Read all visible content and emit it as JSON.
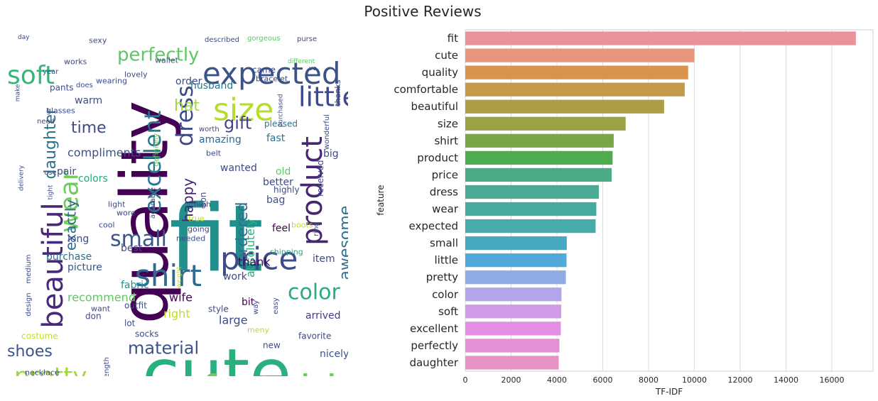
{
  "suptitle": "Positive Reviews",
  "wordcloud": {
    "words": [
      {
        "text": "fit",
        "size": 130,
        "color": "#21908d",
        "rotate": 0
      },
      {
        "text": "quality",
        "size": 92,
        "color": "#440154",
        "rotate": -90
      },
      {
        "text": "cute",
        "size": 96,
        "color": "#2ab07f",
        "rotate": 0
      },
      {
        "text": "comfortable",
        "size": 58,
        "color": "#6ccd5a",
        "rotate": 0
      },
      {
        "text": "expected",
        "size": 42,
        "color": "#3b528b",
        "rotate": 0
      },
      {
        "text": "size",
        "size": 44,
        "color": "#b5de2b",
        "rotate": 0
      },
      {
        "text": "price",
        "size": 44,
        "color": "#3e4a89",
        "rotate": 0
      },
      {
        "text": "shirt",
        "size": 42,
        "color": "#31688e",
        "rotate": 0
      },
      {
        "text": "beautiful",
        "size": 40,
        "color": "#482878",
        "rotate": -90
      },
      {
        "text": "product",
        "size": 40,
        "color": "#482475",
        "rotate": -90
      },
      {
        "text": "dress",
        "size": 32,
        "color": "#3e4a89",
        "rotate": -90
      },
      {
        "text": "little",
        "size": 38,
        "color": "#3e4a89",
        "rotate": 0
      },
      {
        "text": "soft",
        "size": 36,
        "color": "#35b779",
        "rotate": 0
      },
      {
        "text": "wear",
        "size": 36,
        "color": "#6ccd5a",
        "rotate": -90
      },
      {
        "text": "pretty",
        "size": 34,
        "color": "#a0da39",
        "rotate": 0
      },
      {
        "text": "excellent",
        "size": 32,
        "color": "#2a788e",
        "rotate": -90
      },
      {
        "text": "small",
        "size": 30,
        "color": "#39568c",
        "rotate": 0
      },
      {
        "text": "color",
        "size": 30,
        "color": "#27ad81",
        "rotate": 0
      },
      {
        "text": "perfectly",
        "size": 26,
        "color": "#5ec962",
        "rotate": 0
      },
      {
        "text": "daughter",
        "size": 22,
        "color": "#2c728e",
        "rotate": -90
      },
      {
        "text": "material",
        "size": 24,
        "color": "#3b528b",
        "rotate": 0
      },
      {
        "text": "ordered",
        "size": 22,
        "color": "#2c728e",
        "rotate": -90
      },
      {
        "text": "awesome",
        "size": 22,
        "color": "#2c728e",
        "rotate": -90
      },
      {
        "text": "shoes",
        "size": 22,
        "color": "#3b528b",
        "rotate": 0
      },
      {
        "text": "time",
        "size": 22,
        "color": "#3e4a89",
        "rotate": 0
      },
      {
        "text": "gift",
        "size": 24,
        "color": "#414487",
        "rotate": 0
      },
      {
        "text": "hat",
        "size": 22,
        "color": "#a0da39",
        "rotate": 0
      },
      {
        "text": "happy",
        "size": 20,
        "color": "#482475",
        "rotate": -90
      },
      {
        "text": "exactly",
        "size": 20,
        "color": "#31688e",
        "rotate": -90
      },
      {
        "text": "compliments",
        "size": 16,
        "color": "#3b528b",
        "rotate": 0
      },
      {
        "text": "recommend",
        "size": 16,
        "color": "#5ec962",
        "rotate": 0
      },
      {
        "text": "absolutely",
        "size": 16,
        "color": "#2ab07f",
        "rotate": -90
      },
      {
        "text": "amazing",
        "size": 14,
        "color": "#31688e",
        "rotate": 0
      },
      {
        "text": "colors",
        "size": 14,
        "color": "#22a884",
        "rotate": 0
      },
      {
        "text": "purchase",
        "size": 14,
        "color": "#2c728e",
        "rotate": 0
      },
      {
        "text": "picture",
        "size": 14,
        "color": "#3b528b",
        "rotate": 0
      },
      {
        "text": "fabric",
        "size": 14,
        "color": "#21918c",
        "rotate": 0
      },
      {
        "text": "wife",
        "size": 16,
        "color": "#440154",
        "rotate": 0
      },
      {
        "text": "right",
        "size": 16,
        "color": "#bddf26",
        "rotate": 0
      },
      {
        "text": "large",
        "size": 16,
        "color": "#3e4a89",
        "rotate": 0
      },
      {
        "text": "thank",
        "size": 16,
        "color": "#440154",
        "rotate": 0
      },
      {
        "text": "arrived",
        "size": 14,
        "color": "#443983",
        "rotate": 0
      },
      {
        "text": "big",
        "size": 14,
        "color": "#3e4a89",
        "rotate": 0
      },
      {
        "text": "fast",
        "size": 14,
        "color": "#2c728e",
        "rotate": 0
      },
      {
        "text": "husband",
        "size": 14,
        "color": "#2a788e",
        "rotate": 0
      },
      {
        "text": "order",
        "size": 14,
        "color": "#3e4a89",
        "rotate": 0
      },
      {
        "text": "warm",
        "size": 14,
        "color": "#3b528b",
        "rotate": 0
      },
      {
        "text": "pants",
        "size": 12,
        "color": "#3e4a89",
        "rotate": 0
      },
      {
        "text": "pair",
        "size": 14,
        "color": "#3e4a89",
        "rotate": 0
      },
      {
        "text": "long",
        "size": 14,
        "color": "#3e4a89",
        "rotate": 0
      },
      {
        "text": "best",
        "size": 14,
        "color": "#3e4a89",
        "rotate": 0
      },
      {
        "text": "work",
        "size": 14,
        "color": "#3e4a89",
        "rotate": 0
      },
      {
        "text": "bit",
        "size": 14,
        "color": "#440154",
        "rotate": 0
      },
      {
        "text": "style",
        "size": 12,
        "color": "#3e4a89",
        "rotate": 0
      },
      {
        "text": "nicely",
        "size": 14,
        "color": "#3b528b",
        "rotate": 0
      },
      {
        "text": "feel",
        "size": 14,
        "color": "#440154",
        "rotate": 0
      },
      {
        "text": "better",
        "size": 14,
        "color": "#3e4a89",
        "rotate": 0
      },
      {
        "text": "bag",
        "size": 14,
        "color": "#3b528b",
        "rotate": 0
      },
      {
        "text": "item",
        "size": 14,
        "color": "#3e4a89",
        "rotate": 0
      },
      {
        "text": "wanted",
        "size": 14,
        "color": "#3e4a89",
        "rotate": 0
      },
      {
        "text": "old",
        "size": 14,
        "color": "#5ec962",
        "rotate": 0
      },
      {
        "text": "lot",
        "size": 12,
        "color": "#3e4a89",
        "rotate": 0
      },
      {
        "text": "outfit",
        "size": 12,
        "color": "#3e4a89",
        "rotate": 0
      },
      {
        "text": "socks",
        "size": 12,
        "color": "#3e4a89",
        "rotate": 0
      },
      {
        "text": "favorite",
        "size": 12,
        "color": "#3e4a89",
        "rotate": 0
      },
      {
        "text": "new",
        "size": 12,
        "color": "#3e4a89",
        "rotate": 0
      },
      {
        "text": "costume",
        "size": 12,
        "color": "#bddf26",
        "rotate": 0
      },
      {
        "text": "necklace",
        "size": 11,
        "color": "#3e4a89",
        "rotate": 0
      },
      {
        "text": "glasses",
        "size": 11,
        "color": "#3e4a89",
        "rotate": 0
      },
      {
        "text": "came",
        "size": 12,
        "color": "#3e4a89",
        "rotate": 0
      },
      {
        "text": "pleased",
        "size": 12,
        "color": "#2c728e",
        "rotate": 0
      },
      {
        "text": "bracelet",
        "size": 11,
        "color": "#3e4a89",
        "rotate": 0
      },
      {
        "text": "sexy",
        "size": 11,
        "color": "#3e4a89",
        "rotate": 0
      },
      {
        "text": "lovely",
        "size": 11,
        "color": "#3e4a89",
        "rotate": 0
      },
      {
        "text": "wallet",
        "size": 11,
        "color": "#3e4a89",
        "rotate": 0
      },
      {
        "text": "gorgeous",
        "size": 10,
        "color": "#5ec962",
        "rotate": 0
      },
      {
        "text": "purse",
        "size": 10,
        "color": "#3e4a89",
        "rotate": 0
      },
      {
        "text": "described",
        "size": 10,
        "color": "#3e4a89",
        "rotate": 0
      },
      {
        "text": "highly",
        "size": 12,
        "color": "#3e4a89",
        "rotate": 0
      },
      {
        "text": "shipping",
        "size": 11,
        "color": "#22a884",
        "rotate": 0
      },
      {
        "text": "wonderful",
        "size": 10,
        "color": "#3e4a89",
        "rotate": -90
      },
      {
        "text": "received",
        "size": 12,
        "color": "#3e4a89",
        "rotate": -90
      },
      {
        "text": "thanks",
        "size": 11,
        "color": "#3e4a89",
        "rotate": -90
      },
      {
        "text": "boots",
        "size": 11,
        "color": "#bddf26",
        "rotate": 0
      },
      {
        "text": "meny",
        "size": 11,
        "color": "#b5de2b",
        "rotate": 0
      },
      {
        "text": "medium",
        "size": 10,
        "color": "#3e4a89",
        "rotate": -90
      },
      {
        "text": "design",
        "size": 10,
        "color": "#3e4a89",
        "rotate": -90
      },
      {
        "text": "length",
        "size": 10,
        "color": "#3e4a89",
        "rotate": -90
      },
      {
        "text": "cool",
        "size": 11,
        "color": "#3e4a89",
        "rotate": 0
      },
      {
        "text": "light",
        "size": 11,
        "color": "#3e4a89",
        "rotate": 0
      },
      {
        "text": "wore",
        "size": 11,
        "color": "#3e4a89",
        "rotate": 0
      },
      {
        "text": "son",
        "size": 12,
        "color": "#3e4a89",
        "rotate": -90
      },
      {
        "text": "high",
        "size": 11,
        "color": "#3e4a89",
        "rotate": 0
      },
      {
        "text": "true",
        "size": 11,
        "color": "#bddf26",
        "rotate": 0
      },
      {
        "text": "going",
        "size": 11,
        "color": "#3e4a89",
        "rotate": 0
      },
      {
        "text": "needed",
        "size": 11,
        "color": "#3e4a89",
        "rotate": 0
      },
      {
        "text": "don",
        "size": 12,
        "color": "#3e4a89",
        "rotate": 0
      },
      {
        "text": "want",
        "size": 11,
        "color": "#3e4a89",
        "rotate": 0
      },
      {
        "text": "year",
        "size": 10,
        "color": "#3e4a89",
        "rotate": 0
      },
      {
        "text": "works",
        "size": 11,
        "color": "#3e4a89",
        "rotate": 0
      },
      {
        "text": "wearing",
        "size": 11,
        "color": "#3e4a89",
        "rotate": 0
      },
      {
        "text": "does",
        "size": 10,
        "color": "#3e4a89",
        "rotate": 0
      },
      {
        "text": "belt",
        "size": 11,
        "color": "#3e4a89",
        "rotate": 0
      },
      {
        "text": "worth",
        "size": 10,
        "color": "#3e4a89",
        "rotate": 0
      },
      {
        "text": "tight",
        "size": 9,
        "color": "#3e4a89",
        "rotate": -90
      },
      {
        "text": "use",
        "size": 10,
        "color": "#3e4a89",
        "rotate": 0
      },
      {
        "text": "need",
        "size": 10,
        "color": "#3e4a89",
        "rotate": 0
      },
      {
        "text": "make",
        "size": 9,
        "color": "#3e4a89",
        "rotate": -90
      },
      {
        "text": "day",
        "size": 9,
        "color": "#3e4a89",
        "rotate": 0
      },
      {
        "text": "different",
        "size": 9,
        "color": "#5ec962",
        "rotate": 0
      },
      {
        "text": "purchased",
        "size": 9,
        "color": "#3e4a89",
        "rotate": -90
      },
      {
        "text": "definitely",
        "size": 10,
        "color": "#5ec962",
        "rotate": -90
      },
      {
        "text": "adorable",
        "size": 10,
        "color": "#3e4a89",
        "rotate": -90
      },
      {
        "text": "easy",
        "size": 10,
        "color": "#3e4a89",
        "rotate": -90
      },
      {
        "text": "way",
        "size": 10,
        "color": "#3e4a89",
        "rotate": -90
      },
      {
        "text": "ring",
        "size": 10,
        "color": "#3e4a89",
        "rotate": -90
      },
      {
        "text": "weight",
        "size": 9,
        "color": "#bddf26",
        "rotate": -90
      },
      {
        "text": "delivery",
        "size": 9,
        "color": "#3e4a89",
        "rotate": -90
      },
      {
        "text": "ve",
        "size": 9,
        "color": "#3e4a89",
        "rotate": 0
      }
    ]
  },
  "chart_data": {
    "type": "bar",
    "orientation": "horizontal",
    "categories": [
      "fit",
      "cute",
      "quality",
      "comfortable",
      "beautiful",
      "size",
      "shirt",
      "product",
      "price",
      "dress",
      "wear",
      "expected",
      "small",
      "little",
      "pretty",
      "color",
      "soft",
      "excellent",
      "perfectly",
      "daughter"
    ],
    "values": [
      17050,
      10000,
      9730,
      9580,
      8680,
      7000,
      6480,
      6430,
      6390,
      5830,
      5720,
      5690,
      4430,
      4420,
      4390,
      4200,
      4190,
      4170,
      4110,
      4080
    ],
    "colors": [
      "#e8929a",
      "#e8957c",
      "#d8944f",
      "#c29a4a",
      "#ad9d44",
      "#9aa344",
      "#7aa645",
      "#4cac4e",
      "#4bab86",
      "#49ab95",
      "#47aa9f",
      "#47aaab",
      "#48a8bf",
      "#50a9d9",
      "#8fabe6",
      "#b3a5eb",
      "#d09ae9",
      "#e48ee3",
      "#e590d6",
      "#e692c3"
    ],
    "xlabel": "TF-IDF",
    "ylabel": "feature",
    "xlim": [
      0,
      17800
    ],
    "xticks": [
      0,
      2000,
      4000,
      6000,
      8000,
      10000,
      12000,
      14000,
      16000
    ],
    "grid": "vertical"
  }
}
